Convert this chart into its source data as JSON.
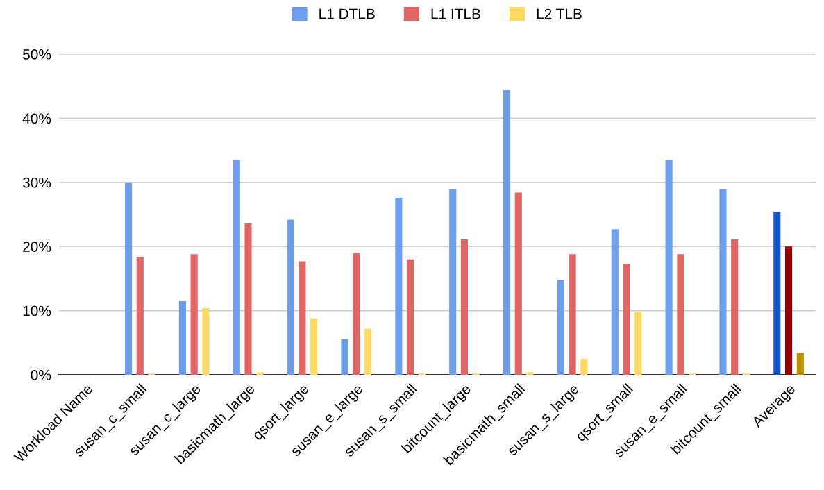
{
  "chart_data": {
    "type": "bar",
    "categories": [
      "Workload Name",
      "susan_c_small",
      "susan_c_large",
      "basicmath_large",
      "qsort_large",
      "susan_e_large",
      "susan_s_small",
      "bitcount_large",
      "basicmath_small",
      "susan_s_large",
      "qsort_small",
      "susan_e_small",
      "bitcount_small",
      "Average"
    ],
    "series": [
      {
        "name": "L1 DTLB",
        "color": "#6d9eeb",
        "colors": [
          "#6d9eeb",
          "#6d9eeb",
          "#6d9eeb",
          "#6d9eeb",
          "#6d9eeb",
          "#6d9eeb",
          "#6d9eeb",
          "#6d9eeb",
          "#6d9eeb",
          "#6d9eeb",
          "#6d9eeb",
          "#6d9eeb",
          "#6d9eeb",
          "#1155cc"
        ],
        "values": [
          null,
          29.9,
          11.5,
          33.5,
          24.2,
          5.6,
          27.6,
          29.0,
          44.4,
          14.8,
          22.7,
          33.5,
          29.0,
          25.4
        ]
      },
      {
        "name": "L1 ITLB",
        "color": "#e06666",
        "colors": [
          "#e06666",
          "#e06666",
          "#e06666",
          "#e06666",
          "#e06666",
          "#e06666",
          "#e06666",
          "#e06666",
          "#e06666",
          "#e06666",
          "#e06666",
          "#e06666",
          "#e06666",
          "#990000"
        ],
        "values": [
          null,
          18.4,
          18.8,
          23.6,
          17.7,
          19.0,
          18.0,
          21.1,
          28.4,
          18.8,
          17.3,
          18.8,
          21.1,
          20.0
        ]
      },
      {
        "name": "L2 TLB",
        "color": "#ffd966",
        "colors": [
          "#ffd966",
          "#ffd966",
          "#ffd966",
          "#ffd966",
          "#ffd966",
          "#ffd966",
          "#ffd966",
          "#ffd966",
          "#ffd966",
          "#ffd966",
          "#ffd966",
          "#ffd966",
          "#ffd966",
          "#bf9000"
        ],
        "values": [
          null,
          0.2,
          10.4,
          0.4,
          8.8,
          7.2,
          0.2,
          0.2,
          0.4,
          2.5,
          9.8,
          0.2,
          0.2,
          3.4
        ]
      }
    ],
    "ylim": [
      0,
      50
    ],
    "yticks": [
      {
        "value": 0,
        "label": "0%"
      },
      {
        "value": 10,
        "label": "10%"
      },
      {
        "value": 20,
        "label": "20%"
      },
      {
        "value": 30,
        "label": "30%"
      },
      {
        "value": 40,
        "label": "40%"
      },
      {
        "value": 50,
        "label": "50%"
      }
    ],
    "grid": "y",
    "legend": "top"
  }
}
